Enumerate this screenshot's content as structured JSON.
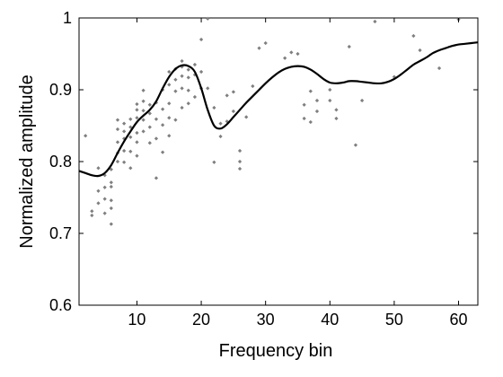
{
  "chart_data": {
    "type": "scatter",
    "xlabel": "Frequency bin",
    "ylabel": "Normalized amplitude",
    "xlim": [
      1,
      63
    ],
    "ylim": [
      0.6,
      1.0
    ],
    "xticks": [
      10,
      20,
      30,
      40,
      50,
      60
    ],
    "yticks": [
      0.6,
      0.7,
      0.8,
      0.9,
      1.0
    ],
    "ytick_labels": [
      "0.6",
      "0.7",
      "0.8",
      "0.9",
      "1"
    ],
    "grid": false,
    "legend": "none",
    "colors": {
      "points": "#7f7f7f",
      "curve": "#000000"
    },
    "series": [
      {
        "type": "line",
        "x": [
          1,
          2,
          3,
          4,
          5,
          6,
          7,
          8,
          9,
          10,
          11,
          12,
          13,
          14,
          15,
          16,
          17,
          18,
          19,
          20,
          21,
          22,
          23,
          24,
          25,
          26,
          27,
          28,
          29,
          30,
          31,
          32,
          33,
          34,
          35,
          36,
          37,
          38,
          39,
          40,
          41,
          42,
          43,
          44,
          45,
          46,
          47,
          48,
          49,
          50,
          51,
          52,
          53,
          54,
          55,
          56,
          57,
          58,
          59,
          60,
          61,
          62,
          63
        ],
        "y": [
          0.787,
          0.784,
          0.781,
          0.78,
          0.784,
          0.795,
          0.812,
          0.828,
          0.842,
          0.855,
          0.864,
          0.872,
          0.884,
          0.902,
          0.918,
          0.929,
          0.934,
          0.933,
          0.925,
          0.902,
          0.872,
          0.85,
          0.846,
          0.852,
          0.862,
          0.872,
          0.882,
          0.891,
          0.9,
          0.909,
          0.917,
          0.924,
          0.929,
          0.932,
          0.933,
          0.932,
          0.928,
          0.922,
          0.915,
          0.91,
          0.909,
          0.91,
          0.912,
          0.912,
          0.911,
          0.91,
          0.909,
          0.909,
          0.911,
          0.915,
          0.921,
          0.928,
          0.935,
          0.94,
          0.945,
          0.951,
          0.955,
          0.958,
          0.961,
          0.963,
          0.964,
          0.965,
          0.966
        ]
      },
      {
        "type": "scatter",
        "x": [
          2,
          3,
          3,
          4,
          4,
          4,
          5,
          5,
          5,
          5,
          6,
          6,
          6,
          6,
          6,
          6,
          7,
          7,
          7,
          7,
          7,
          8,
          8,
          8,
          8,
          8,
          9,
          9,
          9,
          9,
          9,
          10,
          10,
          10,
          10,
          10,
          10,
          11,
          11,
          11,
          11,
          11,
          12,
          12,
          12,
          12,
          13,
          13,
          13,
          13,
          14,
          14,
          14,
          14,
          15,
          15,
          15,
          15,
          15,
          16,
          16,
          16,
          16,
          17,
          17,
          17,
          17,
          17,
          18,
          18,
          18,
          18,
          19,
          19,
          19,
          20,
          20,
          20,
          21,
          21,
          22,
          22,
          23,
          23,
          24,
          24,
          25,
          25,
          26,
          26,
          26,
          27,
          28,
          29,
          30,
          33,
          34,
          35,
          36,
          36,
          37,
          37,
          38,
          38,
          40,
          40,
          41,
          41,
          43,
          44,
          45,
          47,
          50,
          53,
          54,
          57,
          60
        ],
        "y": [
          0.836,
          0.725,
          0.731,
          0.742,
          0.759,
          0.791,
          0.764,
          0.781,
          0.728,
          0.748,
          0.713,
          0.735,
          0.746,
          0.765,
          0.771,
          0.789,
          0.8,
          0.812,
          0.827,
          0.858,
          0.845,
          0.799,
          0.815,
          0.832,
          0.853,
          0.842,
          0.791,
          0.814,
          0.834,
          0.848,
          0.859,
          0.808,
          0.827,
          0.84,
          0.861,
          0.872,
          0.88,
          0.842,
          0.858,
          0.871,
          0.884,
          0.899,
          0.826,
          0.848,
          0.867,
          0.879,
          0.777,
          0.832,
          0.859,
          0.882,
          0.813,
          0.851,
          0.873,
          0.9,
          0.836,
          0.861,
          0.881,
          0.907,
          0.925,
          0.858,
          0.898,
          0.914,
          0.929,
          0.875,
          0.902,
          0.919,
          0.932,
          0.94,
          0.881,
          0.917,
          0.928,
          0.899,
          0.89,
          0.921,
          0.935,
          0.925,
          0.902,
          0.97,
          0.902,
          0.999,
          0.875,
          0.799,
          0.835,
          0.853,
          0.856,
          0.892,
          0.897,
          0.87,
          0.79,
          0.8,
          0.815,
          0.862,
          0.905,
          0.958,
          0.965,
          0.944,
          0.952,
          0.95,
          0.879,
          0.86,
          0.898,
          0.855,
          0.885,
          0.87,
          0.9,
          0.885,
          0.872,
          0.86,
          0.96,
          0.823,
          0.885,
          0.995,
          0.918,
          0.975,
          0.955,
          0.93,
          0.998
        ]
      }
    ]
  }
}
